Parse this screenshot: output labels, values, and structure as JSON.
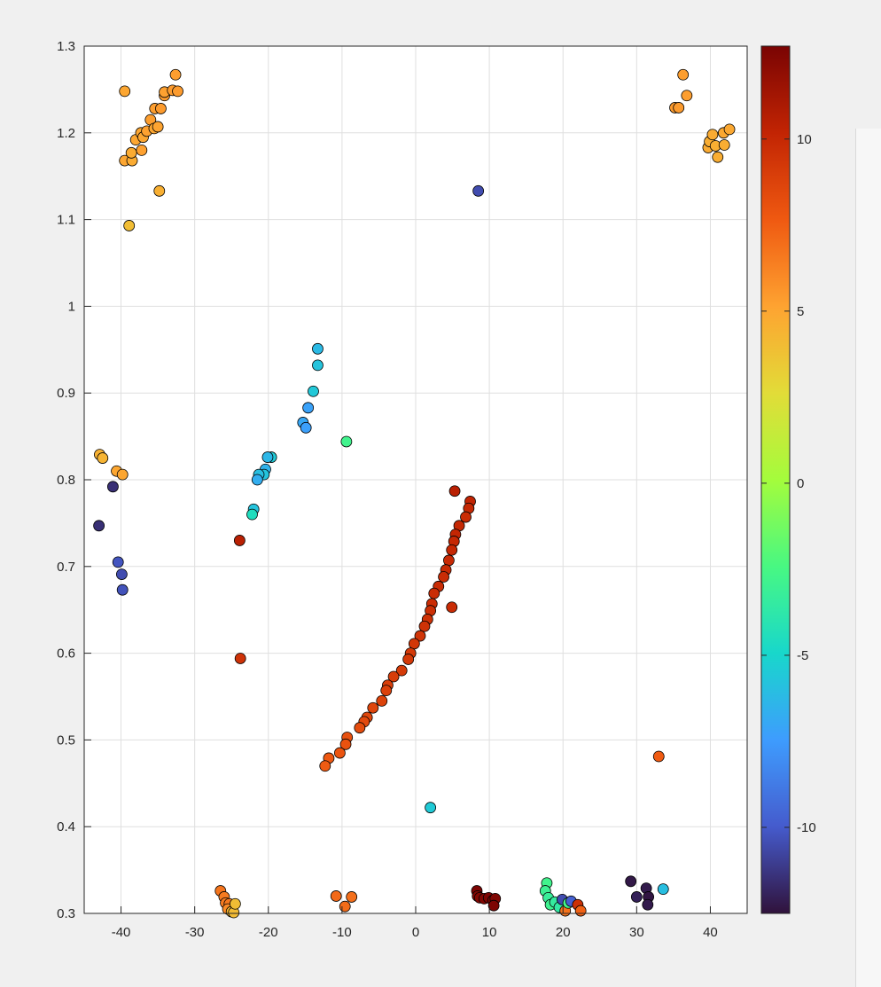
{
  "chart_data": {
    "type": "scatter",
    "title": "",
    "xlabel": "",
    "ylabel": "",
    "xlim": [
      -45,
      45
    ],
    "ylim": [
      0.3,
      1.3
    ],
    "grid": true,
    "x_ticks": [
      -40,
      -30,
      -20,
      -10,
      0,
      10,
      20,
      30,
      40
    ],
    "y_ticks": [
      0.3,
      0.4,
      0.5,
      0.6,
      0.7,
      0.8,
      0.9,
      1,
      1.1,
      1.2,
      1.3
    ],
    "colorbar": {
      "colormap": "turbo",
      "clim": [
        -12.5,
        12.7
      ],
      "ticks": [
        -10,
        -5,
        0,
        5,
        10
      ],
      "position": "right"
    },
    "marker": {
      "shape": "circle",
      "edge_color": "#000000"
    },
    "points": [
      {
        "x": -39.5,
        "y": 1.248,
        "c": 5.0
      },
      {
        "x": -39.5,
        "y": 1.168,
        "c": 5.0
      },
      {
        "x": -38.5,
        "y": 1.168,
        "c": 4.8
      },
      {
        "x": -38.6,
        "y": 1.177,
        "c": 4.8
      },
      {
        "x": -38.0,
        "y": 1.192,
        "c": 5.0
      },
      {
        "x": -37.2,
        "y": 1.18,
        "c": 5.2
      },
      {
        "x": -37.3,
        "y": 1.2,
        "c": 5.0
      },
      {
        "x": -37.0,
        "y": 1.195,
        "c": 5.0
      },
      {
        "x": -36.5,
        "y": 1.202,
        "c": 5.2
      },
      {
        "x": -36.0,
        "y": 1.215,
        "c": 5.3
      },
      {
        "x": -35.5,
        "y": 1.205,
        "c": 5.0
      },
      {
        "x": -35.4,
        "y": 1.228,
        "c": 5.3
      },
      {
        "x": -35.0,
        "y": 1.207,
        "c": 5.1
      },
      {
        "x": -34.6,
        "y": 1.228,
        "c": 5.4
      },
      {
        "x": -34.1,
        "y": 1.243,
        "c": 5.4
      },
      {
        "x": -34.1,
        "y": 1.247,
        "c": 5.2
      },
      {
        "x": -33.0,
        "y": 1.249,
        "c": 5.4
      },
      {
        "x": -32.6,
        "y": 1.267,
        "c": 5.3
      },
      {
        "x": -32.3,
        "y": 1.248,
        "c": 5.4
      },
      {
        "x": -34.8,
        "y": 1.133,
        "c": 4.6
      },
      {
        "x": -38.9,
        "y": 1.093,
        "c": 4.0
      },
      {
        "x": 8.5,
        "y": 1.133,
        "c": -10.5
      },
      {
        "x": 35.2,
        "y": 1.229,
        "c": 5.4
      },
      {
        "x": 35.7,
        "y": 1.229,
        "c": 5.4
      },
      {
        "x": 36.3,
        "y": 1.267,
        "c": 5.3
      },
      {
        "x": 36.8,
        "y": 1.243,
        "c": 5.3
      },
      {
        "x": 39.7,
        "y": 1.183,
        "c": 4.8
      },
      {
        "x": 39.9,
        "y": 1.19,
        "c": 4.7
      },
      {
        "x": 40.3,
        "y": 1.198,
        "c": 4.8
      },
      {
        "x": 40.7,
        "y": 1.185,
        "c": 4.6
      },
      {
        "x": 41.0,
        "y": 1.172,
        "c": 4.7
      },
      {
        "x": 41.8,
        "y": 1.2,
        "c": 4.9
      },
      {
        "x": 41.9,
        "y": 1.186,
        "c": 4.7
      },
      {
        "x": 42.6,
        "y": 1.204,
        "c": 4.9
      },
      {
        "x": -13.3,
        "y": 0.951,
        "c": -6.2
      },
      {
        "x": -13.3,
        "y": 0.932,
        "c": -5.8
      },
      {
        "x": -13.9,
        "y": 0.902,
        "c": -5.6
      },
      {
        "x": -14.6,
        "y": 0.883,
        "c": -7.2
      },
      {
        "x": -15.3,
        "y": 0.866,
        "c": -7.0
      },
      {
        "x": -14.9,
        "y": 0.86,
        "c": -7.3
      },
      {
        "x": -9.4,
        "y": 0.844,
        "c": -2.8
      },
      {
        "x": -19.6,
        "y": 0.826,
        "c": -5.5
      },
      {
        "x": -20.1,
        "y": 0.826,
        "c": -6.3
      },
      {
        "x": -20.4,
        "y": 0.812,
        "c": -6.5
      },
      {
        "x": -20.6,
        "y": 0.806,
        "c": -5.8
      },
      {
        "x": -21.3,
        "y": 0.806,
        "c": -6.0
      },
      {
        "x": -21.5,
        "y": 0.8,
        "c": -6.7
      },
      {
        "x": -22.0,
        "y": 0.766,
        "c": -5.8
      },
      {
        "x": -22.2,
        "y": 0.76,
        "c": -4.5
      },
      {
        "x": -42.9,
        "y": 0.829,
        "c": 4.5
      },
      {
        "x": -42.5,
        "y": 0.825,
        "c": 4.4
      },
      {
        "x": -40.6,
        "y": 0.81,
        "c": 5.0
      },
      {
        "x": -39.8,
        "y": 0.806,
        "c": 5.0
      },
      {
        "x": -41.1,
        "y": 0.792,
        "c": -11.5
      },
      {
        "x": -43.0,
        "y": 0.747,
        "c": -11.5
      },
      {
        "x": -40.4,
        "y": 0.705,
        "c": -10.2
      },
      {
        "x": -39.9,
        "y": 0.691,
        "c": -10.5
      },
      {
        "x": -39.8,
        "y": 0.673,
        "c": -10.3
      },
      {
        "x": -23.9,
        "y": 0.73,
        "c": 10.5
      },
      {
        "x": -23.8,
        "y": 0.594,
        "c": 9.5
      },
      {
        "x": 5.3,
        "y": 0.787,
        "c": 10.5
      },
      {
        "x": 7.4,
        "y": 0.775,
        "c": 10.2
      },
      {
        "x": 7.2,
        "y": 0.767,
        "c": 10.0
      },
      {
        "x": 6.8,
        "y": 0.757,
        "c": 9.8
      },
      {
        "x": 5.9,
        "y": 0.747,
        "c": 10.0
      },
      {
        "x": 5.4,
        "y": 0.737,
        "c": 10.1
      },
      {
        "x": 5.2,
        "y": 0.729,
        "c": 10.0
      },
      {
        "x": 4.9,
        "y": 0.719,
        "c": 10.0
      },
      {
        "x": 4.5,
        "y": 0.707,
        "c": 9.9
      },
      {
        "x": 4.1,
        "y": 0.696,
        "c": 9.9
      },
      {
        "x": 3.8,
        "y": 0.688,
        "c": 9.8
      },
      {
        "x": 3.1,
        "y": 0.677,
        "c": 9.8
      },
      {
        "x": 2.5,
        "y": 0.669,
        "c": 9.8
      },
      {
        "x": 4.9,
        "y": 0.653,
        "c": 9.8
      },
      {
        "x": 2.2,
        "y": 0.657,
        "c": 9.7
      },
      {
        "x": 2.0,
        "y": 0.649,
        "c": 9.6
      },
      {
        "x": 1.6,
        "y": 0.639,
        "c": 9.5
      },
      {
        "x": 1.2,
        "y": 0.631,
        "c": 9.5
      },
      {
        "x": 0.6,
        "y": 0.62,
        "c": 9.4
      },
      {
        "x": -0.2,
        "y": 0.611,
        "c": 9.3
      },
      {
        "x": -0.7,
        "y": 0.6,
        "c": 9.2
      },
      {
        "x": -1.0,
        "y": 0.593,
        "c": 9.2
      },
      {
        "x": -1.9,
        "y": 0.58,
        "c": 9.1
      },
      {
        "x": -3.0,
        "y": 0.573,
        "c": 9.0
      },
      {
        "x": -3.8,
        "y": 0.563,
        "c": 8.9
      },
      {
        "x": -4.0,
        "y": 0.557,
        "c": 8.8
      },
      {
        "x": -4.6,
        "y": 0.545,
        "c": 8.7
      },
      {
        "x": -5.8,
        "y": 0.537,
        "c": 8.6
      },
      {
        "x": -6.6,
        "y": 0.526,
        "c": 8.5
      },
      {
        "x": -7.0,
        "y": 0.521,
        "c": 8.4
      },
      {
        "x": -7.6,
        "y": 0.514,
        "c": 8.3
      },
      {
        "x": -9.3,
        "y": 0.503,
        "c": 8.1
      },
      {
        "x": -9.5,
        "y": 0.495,
        "c": 8.0
      },
      {
        "x": -10.3,
        "y": 0.485,
        "c": 7.9
      },
      {
        "x": -11.8,
        "y": 0.479,
        "c": 7.7
      },
      {
        "x": -12.3,
        "y": 0.47,
        "c": 7.6
      },
      {
        "x": 33.0,
        "y": 0.481,
        "c": 7.6
      },
      {
        "x": 2.0,
        "y": 0.422,
        "c": -5.5
      },
      {
        "x": -26.5,
        "y": 0.326,
        "c": 6.7
      },
      {
        "x": -26.0,
        "y": 0.319,
        "c": 6.5
      },
      {
        "x": -25.8,
        "y": 0.312,
        "c": 6.5
      },
      {
        "x": -25.3,
        "y": 0.311,
        "c": 6.6
      },
      {
        "x": -25.5,
        "y": 0.305,
        "c": 6.0
      },
      {
        "x": -25.0,
        "y": 0.302,
        "c": 4.3
      },
      {
        "x": -24.7,
        "y": 0.301,
        "c": 4.1
      },
      {
        "x": -24.5,
        "y": 0.311,
        "c": 4.0
      },
      {
        "x": -10.8,
        "y": 0.32,
        "c": 7.1
      },
      {
        "x": -9.6,
        "y": 0.308,
        "c": 7.0
      },
      {
        "x": -8.7,
        "y": 0.319,
        "c": 6.9
      },
      {
        "x": 8.3,
        "y": 0.326,
        "c": 12.6
      },
      {
        "x": 8.4,
        "y": 0.32,
        "c": 12.5
      },
      {
        "x": 8.7,
        "y": 0.318,
        "c": 12.4
      },
      {
        "x": 9.3,
        "y": 0.317,
        "c": 12.5
      },
      {
        "x": 9.9,
        "y": 0.318,
        "c": 12.6
      },
      {
        "x": 10.5,
        "y": 0.315,
        "c": 12.4
      },
      {
        "x": 10.8,
        "y": 0.317,
        "c": 12.5
      },
      {
        "x": 10.6,
        "y": 0.309,
        "c": 12.6
      },
      {
        "x": 17.8,
        "y": 0.335,
        "c": -2.8
      },
      {
        "x": 17.6,
        "y": 0.326,
        "c": -3.0
      },
      {
        "x": 18.0,
        "y": 0.318,
        "c": -3.2
      },
      {
        "x": 18.3,
        "y": 0.31,
        "c": -2.9
      },
      {
        "x": 18.9,
        "y": 0.313,
        "c": -3.4
      },
      {
        "x": 19.5,
        "y": 0.307,
        "c": -3.6
      },
      {
        "x": 19.9,
        "y": 0.316,
        "c": -10.5
      },
      {
        "x": 20.3,
        "y": 0.303,
        "c": 6.8
      },
      {
        "x": 20.7,
        "y": 0.312,
        "c": -2.7
      },
      {
        "x": 21.1,
        "y": 0.314,
        "c": -9.8
      },
      {
        "x": 22.0,
        "y": 0.31,
        "c": 9.6
      },
      {
        "x": 22.4,
        "y": 0.303,
        "c": 7.4
      },
      {
        "x": 29.2,
        "y": 0.337,
        "c": -12.3
      },
      {
        "x": 30.0,
        "y": 0.319,
        "c": -12.0
      },
      {
        "x": 31.3,
        "y": 0.329,
        "c": -12.2
      },
      {
        "x": 31.6,
        "y": 0.319,
        "c": -12.4
      },
      {
        "x": 31.5,
        "y": 0.31,
        "c": -12.2
      },
      {
        "x": 33.6,
        "y": 0.328,
        "c": -6.0
      }
    ]
  }
}
